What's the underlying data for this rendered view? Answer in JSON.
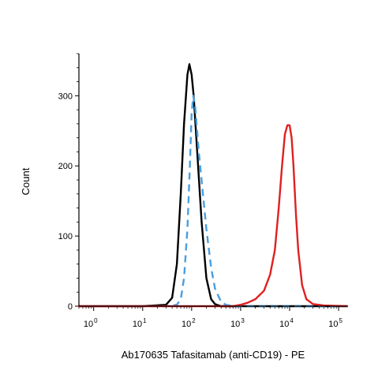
{
  "chart_data": {
    "type": "line",
    "xlabel": "Ab170635 Tafasitamab (anti-CD19) - PE",
    "ylabel": "Count",
    "x_scale": "log",
    "xlim": [
      0.5,
      150000
    ],
    "ylim": [
      0,
      360
    ],
    "y_ticks": [
      0,
      100,
      200,
      300
    ],
    "x_ticks": [
      {
        "value": 1,
        "base": "10",
        "exp": "0"
      },
      {
        "value": 10,
        "base": "10",
        "exp": "1"
      },
      {
        "value": 100,
        "base": "10",
        "exp": "2"
      },
      {
        "value": 1000,
        "base": "10",
        "exp": "3"
      },
      {
        "value": 10000,
        "base": "10",
        "exp": "4"
      },
      {
        "value": 100000,
        "base": "10",
        "exp": "5"
      }
    ],
    "series": [
      {
        "color": "#000000",
        "style": "solid",
        "points": [
          [
            0.5,
            0
          ],
          [
            10,
            0
          ],
          [
            30,
            2
          ],
          [
            40,
            12
          ],
          [
            50,
            60
          ],
          [
            60,
            160
          ],
          [
            70,
            260
          ],
          [
            82,
            330
          ],
          [
            90,
            345
          ],
          [
            100,
            330
          ],
          [
            110,
            300
          ],
          [
            130,
            220
          ],
          [
            160,
            120
          ],
          [
            200,
            40
          ],
          [
            250,
            10
          ],
          [
            300,
            3
          ],
          [
            400,
            0
          ],
          [
            150000,
            0
          ]
        ]
      },
      {
        "color": "#4a9fe0",
        "style": "dashed",
        "points": [
          [
            0.5,
            0
          ],
          [
            30,
            0
          ],
          [
            50,
            2
          ],
          [
            60,
            10
          ],
          [
            70,
            40
          ],
          [
            82,
            110
          ],
          [
            92,
            200
          ],
          [
            100,
            275
          ],
          [
            108,
            300
          ],
          [
            118,
            285
          ],
          [
            140,
            220
          ],
          [
            170,
            160
          ],
          [
            200,
            110
          ],
          [
            250,
            55
          ],
          [
            300,
            25
          ],
          [
            400,
            6
          ],
          [
            500,
            2
          ],
          [
            700,
            0
          ],
          [
            150000,
            0
          ]
        ]
      },
      {
        "color": "#e02020",
        "style": "solid",
        "points": [
          [
            0.5,
            0
          ],
          [
            700,
            0
          ],
          [
            1000,
            2
          ],
          [
            1400,
            5
          ],
          [
            2000,
            10
          ],
          [
            3000,
            22
          ],
          [
            4000,
            45
          ],
          [
            5000,
            80
          ],
          [
            6000,
            140
          ],
          [
            7000,
            200
          ],
          [
            8000,
            245
          ],
          [
            9000,
            258
          ],
          [
            10000,
            258
          ],
          [
            11000,
            240
          ],
          [
            12000,
            200
          ],
          [
            13500,
            130
          ],
          [
            15000,
            80
          ],
          [
            18000,
            30
          ],
          [
            22000,
            10
          ],
          [
            30000,
            3
          ],
          [
            50000,
            1
          ],
          [
            150000,
            0
          ]
        ]
      }
    ]
  }
}
